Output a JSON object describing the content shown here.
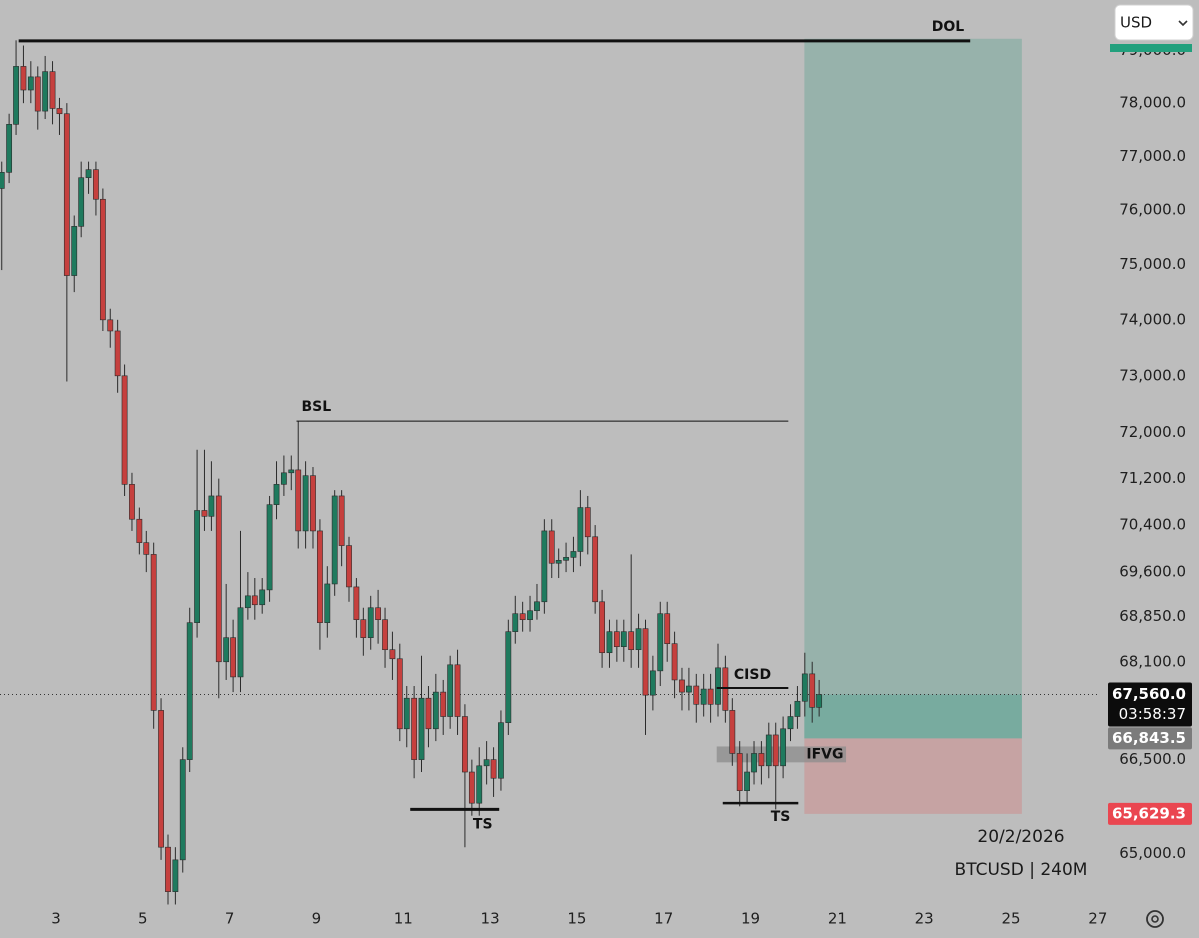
{
  "chart_data": {
    "type": "candlestick",
    "symbol": "BTCUSD | 240M",
    "date": "20/2/2026",
    "currency": "USD",
    "colors": {
      "up": "#1f7a5e",
      "down": "#c6403e"
    },
    "x": [
      1.75,
      1.92,
      2.08,
      2.25,
      2.42,
      2.58,
      2.75,
      2.92,
      3.08,
      3.25,
      3.42,
      3.58,
      3.75,
      3.92,
      4.08,
      4.25,
      4.42,
      4.58,
      4.75,
      4.92,
      5.08,
      5.25,
      5.42,
      5.58,
      5.75,
      5.92,
      6.08,
      6.25,
      6.42,
      6.58,
      6.75,
      6.92,
      7.08,
      7.25,
      7.42,
      7.58,
      7.75,
      7.92,
      8.08,
      8.25,
      8.42,
      8.58,
      8.75,
      8.92,
      9.08,
      9.25,
      9.42,
      9.58,
      9.75,
      9.92,
      10.08,
      10.25,
      10.42,
      10.58,
      10.75,
      10.92,
      11.08,
      11.25,
      11.42,
      11.58,
      11.75,
      11.92,
      12.08,
      12.25,
      12.42,
      12.58,
      12.75,
      12.92,
      13.08,
      13.25,
      13.42,
      13.58,
      13.75,
      13.92,
      14.08,
      14.25,
      14.42,
      14.58,
      14.75,
      14.92,
      15.08,
      15.25,
      15.42,
      15.58,
      15.75,
      15.92,
      16.08,
      16.25,
      16.42,
      16.58,
      16.75,
      16.92,
      17.08,
      17.25,
      17.42,
      17.58,
      17.75,
      17.92,
      18.08,
      18.25,
      18.42,
      18.58,
      18.75,
      18.92,
      19.08,
      19.25,
      19.42,
      19.58,
      19.75,
      19.92,
      20.08,
      20.25,
      20.42,
      20.58
    ],
    "open": [
      76400,
      76700,
      77600,
      78700,
      78250,
      78500,
      77850,
      78600,
      77900,
      77800,
      74800,
      75700,
      76600,
      76750,
      76200,
      74000,
      73800,
      73000,
      71100,
      70500,
      70100,
      69900,
      67300,
      65100,
      64400,
      64900,
      66500,
      68750,
      70650,
      70550,
      70900,
      68100,
      68500,
      67850,
      69000,
      69200,
      69050,
      69300,
      70750,
      71100,
      71300,
      71350,
      70300,
      71250,
      70300,
      68750,
      69400,
      70900,
      70050,
      69350,
      68800,
      68500,
      69000,
      68800,
      68300,
      68150,
      67000,
      67500,
      66500,
      67500,
      67000,
      67600,
      67200,
      68050,
      67200,
      66300,
      65800,
      66400,
      66500,
      66200,
      67100,
      68600,
      68900,
      68800,
      68950,
      69100,
      70300,
      69750,
      69800,
      69850,
      69950,
      70700,
      70200,
      69100,
      68250,
      68600,
      68350,
      68600,
      68300,
      68650,
      67550,
      67950,
      68900,
      68400,
      67800,
      67600,
      67700,
      67400,
      67650,
      67400,
      68000,
      67300,
      66600,
      66000,
      66300,
      66600,
      66400,
      66900,
      66400,
      67000,
      67200,
      67450,
      67900,
      67350
    ],
    "high": [
      76900,
      77800,
      79200,
      79100,
      78800,
      78700,
      78900,
      78800,
      78100,
      78000,
      75900,
      76900,
      76900,
      76900,
      76400,
      74200,
      74000,
      73200,
      71300,
      70700,
      70300,
      70100,
      67500,
      65300,
      65100,
      66700,
      69000,
      71700,
      71700,
      71500,
      71200,
      69400,
      68800,
      70300,
      69600,
      69500,
      69500,
      70900,
      71500,
      71600,
      71600,
      72200,
      71500,
      71400,
      70500,
      69700,
      71000,
      71000,
      70200,
      69500,
      69000,
      69200,
      69300,
      69000,
      68600,
      68400,
      67700,
      67700,
      68200,
      67700,
      67900,
      67800,
      68200,
      68300,
      67400,
      66500,
      66700,
      66800,
      66700,
      67300,
      68800,
      69200,
      69100,
      69200,
      69400,
      70500,
      70500,
      70000,
      70100,
      70200,
      71000,
      70900,
      70400,
      69300,
      68800,
      68800,
      68800,
      69900,
      68900,
      68800,
      68200,
      69100,
      69100,
      68600,
      68000,
      68000,
      67900,
      67900,
      67900,
      68400,
      68200,
      67500,
      66800,
      66600,
      66800,
      66800,
      67100,
      67100,
      67200,
      67400,
      67700,
      68250,
      68100,
      67800
    ],
    "low": [
      74900,
      76500,
      77400,
      78000,
      78000,
      77500,
      77700,
      77600,
      77400,
      72900,
      74500,
      75500,
      76300,
      75900,
      73800,
      73500,
      72700,
      70900,
      70300,
      69900,
      69600,
      67000,
      64900,
      64200,
      64200,
      64700,
      66300,
      68500,
      70300,
      70300,
      67500,
      67800,
      67600,
      67600,
      68800,
      68800,
      68900,
      69100,
      70500,
      70900,
      71000,
      70000,
      70000,
      70000,
      68300,
      68500,
      69200,
      69700,
      69100,
      68500,
      68200,
      68300,
      68400,
      68000,
      67800,
      66800,
      66700,
      66200,
      66300,
      66700,
      66800,
      66900,
      67000,
      66900,
      65100,
      65600,
      65600,
      66100,
      65900,
      66000,
      66900,
      68400,
      68600,
      68600,
      68800,
      68900,
      69500,
      69500,
      69600,
      69600,
      69700,
      69900,
      68900,
      68000,
      68000,
      68100,
      68100,
      68000,
      68000,
      66900,
      67300,
      67700,
      68100,
      67500,
      67300,
      67300,
      67100,
      67200,
      67100,
      67200,
      67100,
      66400,
      65750,
      65800,
      66100,
      66100,
      66200,
      65700,
      66200,
      66800,
      67000,
      67200,
      67100,
      67200
    ],
    "close": [
      76700,
      77600,
      78700,
      78250,
      78500,
      77850,
      78600,
      77900,
      77800,
      74800,
      75700,
      76600,
      76750,
      76200,
      74000,
      73800,
      73000,
      71100,
      70500,
      70100,
      69900,
      67300,
      65100,
      64400,
      64900,
      66500,
      68750,
      70650,
      70550,
      70900,
      68100,
      68500,
      67850,
      69000,
      69200,
      69050,
      69300,
      70750,
      71100,
      71300,
      71350,
      70300,
      71250,
      70300,
      68750,
      69400,
      70900,
      70050,
      69350,
      68800,
      68500,
      69000,
      68800,
      68300,
      68150,
      67000,
      67500,
      66500,
      67500,
      67000,
      67600,
      67200,
      68050,
      67200,
      66300,
      65800,
      66400,
      66500,
      66200,
      67100,
      68600,
      68900,
      68800,
      68950,
      69100,
      70300,
      69750,
      69800,
      69850,
      69950,
      70700,
      70200,
      69100,
      68250,
      68600,
      68350,
      68600,
      68300,
      68650,
      67550,
      67950,
      68900,
      68400,
      67800,
      67600,
      67700,
      67400,
      67650,
      67400,
      68000,
      67300,
      66600,
      66000,
      66300,
      66600,
      66400,
      66900,
      66400,
      67000,
      67200,
      67450,
      67900,
      67350,
      67560
    ],
    "xlim": [
      1.71,
      27.05
    ],
    "xticks": [
      3,
      5,
      7,
      9,
      11,
      13,
      15,
      17,
      19,
      21,
      23,
      25,
      27
    ],
    "ylim": [
      64270,
      79980
    ],
    "log_scale": true,
    "grid": false,
    "yticks": [
      {
        "value": 65000,
        "label": "65,000.0"
      },
      {
        "value": 66500,
        "label": "66,500.0"
      },
      {
        "value": 68100,
        "label": "68,100.0"
      },
      {
        "value": 68850,
        "label": "68,850.0"
      },
      {
        "value": 69600,
        "label": "69,600.0"
      },
      {
        "value": 70400,
        "label": "70,400.0"
      },
      {
        "value": 71200,
        "label": "71,200.0"
      },
      {
        "value": 72000,
        "label": "72,000.0"
      },
      {
        "value": 73000,
        "label": "73,000.0"
      },
      {
        "value": 74000,
        "label": "74,000.0"
      },
      {
        "value": 75000,
        "label": "75,000.0"
      },
      {
        "value": 76000,
        "label": "76,000.0"
      },
      {
        "value": 77000,
        "label": "77,000.0"
      },
      {
        "value": 78000,
        "label": "78,000.0"
      },
      {
        "value": 79000,
        "label": "79,000.0"
      }
    ],
    "current_price": {
      "value": 67560,
      "label": "67,560.0",
      "countdown": "03:58:37"
    },
    "position": {
      "entry": {
        "value": 66843.5,
        "label": "66,843.5"
      },
      "stop": {
        "value": 65629.3,
        "label": "65,629.3"
      },
      "target": 79230,
      "x": [
        20.24,
        25.25
      ]
    },
    "levels": [
      {
        "label": "DOL",
        "y": 79190,
        "x": [
          2.14,
          24.06
        ]
      },
      {
        "label": "BSL",
        "y": 72200,
        "x": [
          8.54,
          19.87
        ]
      },
      {
        "label": "TS",
        "y": 65700,
        "x": [
          11.16,
          13.21
        ]
      },
      {
        "label": "TS",
        "y": 65800,
        "x": [
          18.36,
          20.1
        ]
      },
      {
        "label": "CISD",
        "y": 67667,
        "x": [
          18.22,
          19.87
        ]
      }
    ],
    "zones": [
      {
        "label": "IFVG",
        "y": [
          66456,
          66713
        ],
        "x": [
          18.22,
          21.2
        ]
      }
    ]
  }
}
